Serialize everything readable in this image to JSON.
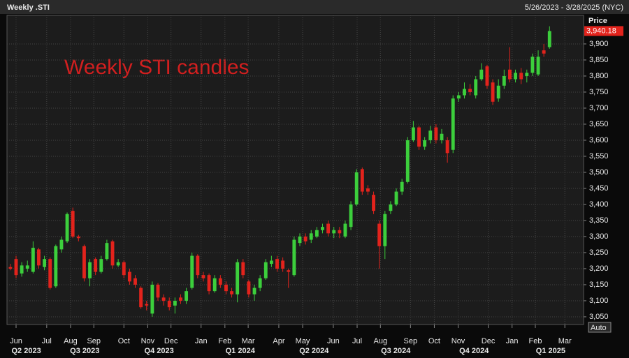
{
  "chart_data": {
    "type": "candlestick",
    "title": "Weekly .STI",
    "subtitle": "5/26/2023 - 3/28/2025 (NYC)",
    "annotation": "Weekly STI candles",
    "y_axis_label": "Price",
    "axis_mode": "Auto",
    "open": [
      3205,
      3230,
      3185,
      3200,
      3190,
      3260,
      3205,
      3230,
      3145,
      3260,
      3285,
      3380,
      3300,
      3270,
      3170,
      3230,
      3190,
      3230,
      3285,
      3210,
      3220,
      3190,
      3170,
      3140,
      3090,
      3060,
      3150,
      3110,
      3100,
      3085,
      3110,
      3100,
      3140,
      3240,
      3180,
      3180,
      3130,
      3170,
      3150,
      3130,
      3120,
      3220,
      3160,
      3120,
      3140,
      3170,
      3215,
      3230,
      3225,
      3195,
      3180,
      3280,
      3300,
      3290,
      3300,
      3320,
      3340,
      3310,
      3320,
      3300,
      3330,
      3400,
      3510,
      3450,
      3430,
      3340,
      3270,
      3380,
      3400,
      3440,
      3470,
      3600,
      3640,
      3580,
      3600,
      3640,
      3600,
      3600,
      3570,
      3730,
      3740,
      3760,
      3740,
      3790,
      3830,
      3780,
      3730,
      3770,
      3820,
      3790,
      3810,
      3800,
      3810,
      3805,
      3880,
      3890
    ],
    "high": [
      3215,
      3240,
      3220,
      3225,
      3285,
      3265,
      3240,
      3235,
      3275,
      3300,
      3375,
      3390,
      3305,
      3275,
      3230,
      3235,
      3240,
      3290,
      3290,
      3230,
      3225,
      3200,
      3180,
      3145,
      3100,
      3160,
      3155,
      3120,
      3110,
      3110,
      3120,
      3140,
      3250,
      3245,
      3190,
      3185,
      3180,
      3180,
      3160,
      3140,
      3230,
      3230,
      3165,
      3150,
      3180,
      3230,
      3240,
      3240,
      3235,
      3200,
      3300,
      3310,
      3310,
      3320,
      3330,
      3340,
      3350,
      3330,
      3330,
      3350,
      3410,
      3510,
      3515,
      3460,
      3440,
      3350,
      3380,
      3410,
      3450,
      3480,
      3610,
      3660,
      3645,
      3610,
      3645,
      3650,
      3635,
      3610,
      3740,
      3750,
      3780,
      3775,
      3800,
      3840,
      3835,
      3790,
      3790,
      3820,
      3890,
      3820,
      3825,
      3820,
      3870,
      3880,
      3900,
      3955
    ],
    "low": [
      3195,
      3170,
      3175,
      3190,
      3185,
      3200,
      3195,
      3135,
      3140,
      3250,
      3280,
      3295,
      3285,
      3160,
      3145,
      3180,
      3185,
      3225,
      3200,
      3205,
      3170,
      3150,
      3140,
      3075,
      3070,
      3050,
      3100,
      3085,
      3070,
      3060,
      3090,
      3090,
      3135,
      3170,
      3160,
      3120,
      3125,
      3140,
      3120,
      3110,
      3095,
      3170,
      3110,
      3100,
      3130,
      3165,
      3205,
      3190,
      3190,
      3140,
      3175,
      3270,
      3275,
      3280,
      3295,
      3310,
      3300,
      3295,
      3295,
      3295,
      3320,
      3395,
      3430,
      3430,
      3370,
      3200,
      3230,
      3370,
      3395,
      3430,
      3465,
      3595,
      3570,
      3570,
      3590,
      3590,
      3590,
      3530,
      3560,
      3720,
      3730,
      3740,
      3730,
      3785,
      3760,
      3710,
      3720,
      3760,
      3780,
      3780,
      3775,
      3780,
      3800,
      3800,
      3860,
      3885
    ],
    "close": [
      3200,
      3180,
      3210,
      3210,
      3265,
      3210,
      3230,
      3140,
      3270,
      3290,
      3370,
      3300,
      3295,
      3170,
      3220,
      3190,
      3230,
      3280,
      3210,
      3220,
      3180,
      3160,
      3150,
      3080,
      3085,
      3150,
      3110,
      3100,
      3080,
      3100,
      3100,
      3130,
      3240,
      3180,
      3170,
      3130,
      3170,
      3150,
      3130,
      3120,
      3220,
      3180,
      3120,
      3140,
      3170,
      3220,
      3225,
      3200,
      3200,
      3190,
      3290,
      3300,
      3285,
      3310,
      3320,
      3330,
      3310,
      3320,
      3310,
      3340,
      3400,
      3500,
      3440,
      3440,
      3380,
      3270,
      3370,
      3400,
      3440,
      3470,
      3600,
      3640,
      3580,
      3600,
      3630,
      3600,
      3620,
      3560,
      3730,
      3740,
      3760,
      3750,
      3790,
      3820,
      3770,
      3720,
      3770,
      3800,
      3790,
      3810,
      3790,
      3810,
      3860,
      3860,
      3870,
      3940.18
    ],
    "up_color": "#3ccf3c",
    "down_color": "#e3231c",
    "last_price": {
      "value": 3940.18,
      "label": "3,940.18"
    },
    "xlim": [
      -0.6,
      101
    ],
    "ylim": [
      3026,
      3989
    ],
    "grid": true,
    "yticks": [
      {
        "value": 3050,
        "label": "3,050"
      },
      {
        "value": 3100,
        "label": "3,100"
      },
      {
        "value": 3150,
        "label": "3,150"
      },
      {
        "value": 3200,
        "label": "3,200"
      },
      {
        "value": 3250,
        "label": "3,250"
      },
      {
        "value": 3300,
        "label": "3,300"
      },
      {
        "value": 3350,
        "label": "3,350"
      },
      {
        "value": 3400,
        "label": "3,400"
      },
      {
        "value": 3450,
        "label": "3,450"
      },
      {
        "value": 3500,
        "label": "3,500"
      },
      {
        "value": 3550,
        "label": "3,550"
      },
      {
        "value": 3600,
        "label": "3,600"
      },
      {
        "value": 3650,
        "label": "3,650"
      },
      {
        "value": 3700,
        "label": "3,700"
      },
      {
        "value": 3750,
        "label": "3,750"
      },
      {
        "value": 3800,
        "label": "3,800"
      },
      {
        "value": 3850,
        "label": "3,850"
      },
      {
        "value": 3900,
        "label": "3,900"
      }
    ],
    "xticks": [
      {
        "value": 1,
        "label": "Jun"
      },
      {
        "value": 6.4,
        "label": "Jul"
      },
      {
        "value": 10.6,
        "label": "Aug"
      },
      {
        "value": 14.7,
        "label": "Sep"
      },
      {
        "value": 20,
        "label": "Oct"
      },
      {
        "value": 24.2,
        "label": "Nov"
      },
      {
        "value": 28.3,
        "label": "Dec"
      },
      {
        "value": 33.6,
        "label": "Jan"
      },
      {
        "value": 37.8,
        "label": "Feb"
      },
      {
        "value": 41.9,
        "label": "Mar"
      },
      {
        "value": 47.3,
        "label": "Apr"
      },
      {
        "value": 51.5,
        "label": "May"
      },
      {
        "value": 56.9,
        "label": "Jun"
      },
      {
        "value": 61.1,
        "label": "Jul"
      },
      {
        "value": 65.2,
        "label": "Aug"
      },
      {
        "value": 70.5,
        "label": "Sep"
      },
      {
        "value": 74.7,
        "label": "Oct"
      },
      {
        "value": 78.9,
        "label": "Nov"
      },
      {
        "value": 84.2,
        "label": "Dec"
      },
      {
        "value": 88.4,
        "label": "Jan"
      },
      {
        "value": 92.5,
        "label": "Feb"
      },
      {
        "value": 97.7,
        "label": "Mar"
      }
    ],
    "quarter_labels": [
      {
        "value": 2.8,
        "label": "Q2 2023"
      },
      {
        "value": 13.1,
        "label": "Q3 2023"
      },
      {
        "value": 26.2,
        "label": "Q4 2023"
      },
      {
        "value": 40.5,
        "label": "Q1 2024"
      },
      {
        "value": 53.5,
        "label": "Q2 2024"
      },
      {
        "value": 67.9,
        "label": "Q3 2024"
      },
      {
        "value": 81.7,
        "label": "Q4 2024"
      },
      {
        "value": 95.2,
        "label": "Q1 2025"
      }
    ]
  }
}
